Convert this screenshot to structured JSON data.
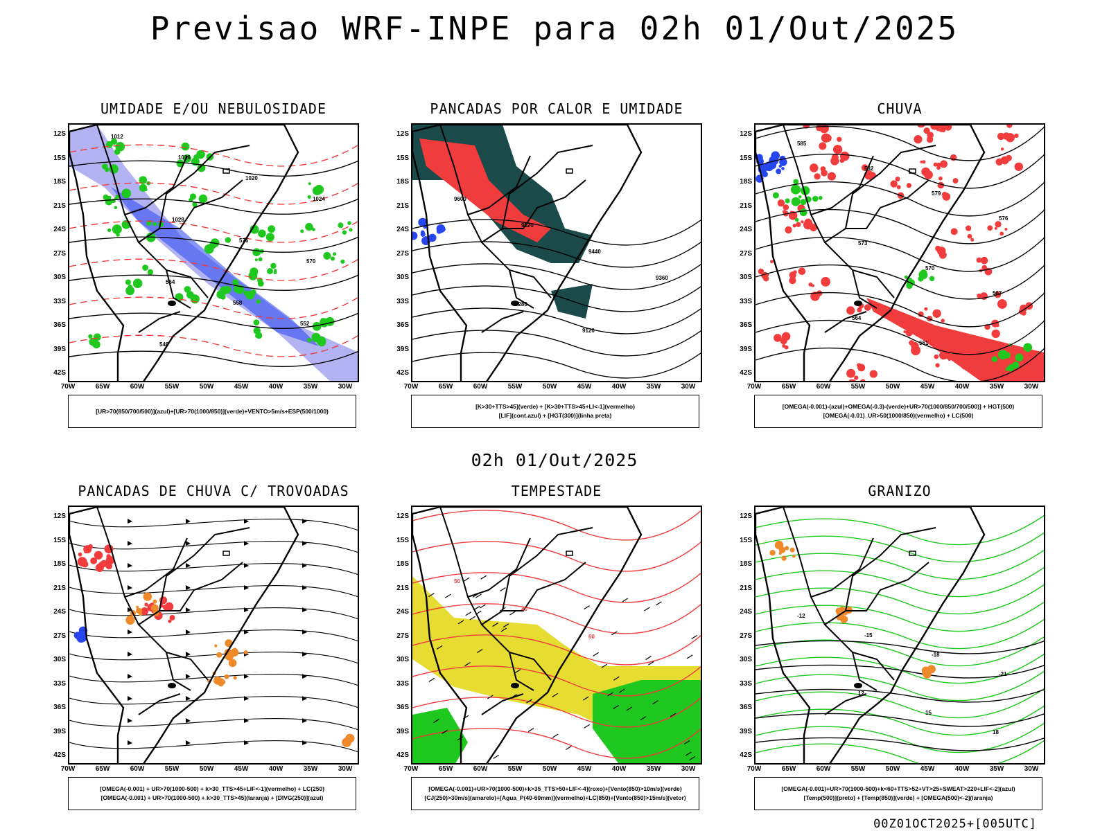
{
  "title": "Previsao WRF-INPE  para 02h 01/Out/2025",
  "mid_date": "02h 01/Out/2025",
  "footer": "00Z01OCT2025+[005UTC]",
  "axes": {
    "lat_labels": [
      "12S",
      "15S",
      "18S",
      "21S",
      "24S",
      "27S",
      "30S",
      "33S",
      "36S",
      "39S",
      "42S"
    ],
    "lon_labels": [
      "70W",
      "65W",
      "60W",
      "55W",
      "50W",
      "45W",
      "40W",
      "35W",
      "30W"
    ]
  },
  "colors": {
    "red": "#f03c3c",
    "green": "#1ec81e",
    "blue": "#2846f0",
    "lavender": "#a0a0f0",
    "orange": "#ef8a2b",
    "yellow": "#e6dc32",
    "darkteal": "#1a4a4a",
    "purple": "#8c28c8"
  },
  "panels": [
    {
      "title": "UMIDADE E/OU NEBULOSIDADE",
      "legend": [
        "[UR>70(850/700/500)](azul)+[UR>70(1000/850)](verde)+VENTO>5m/s+ESP(500/1000)"
      ],
      "contour_labels": [
        "1012",
        "1016",
        "1020",
        "1024",
        "1028",
        "576",
        "570",
        "564",
        "558",
        "552",
        "546"
      ]
    },
    {
      "title": "PANCADAS POR CALOR E UMIDADE",
      "legend": [
        "[K>30+TTS>45](verde) + [K>30+TTS>45+LI<-1](vermelho)",
        "[LIF](cont.azul) + [HGT(300)](linha preta)"
      ],
      "contour_labels": [
        "9600",
        "9520",
        "9440",
        "9360",
        "9280",
        "9120"
      ]
    },
    {
      "title": "CHUVA",
      "legend": [
        "[OMEGA(-0.001)-(azul)+OMEGA(-0.3)-(verde)+UR>70(1000/850/700/500)] + HGT(500)",
        "[OMEGA(-0.01)_UR>50(1000/850)(vermelho) + LC(500)"
      ],
      "contour_labels": [
        "585",
        "582",
        "579",
        "576",
        "573",
        "570",
        "567",
        "564",
        "561"
      ]
    },
    {
      "title": "PANCADAS DE CHUVA C/ TROVOADAS",
      "legend": [
        "[OMEGA(-0.001) + UR>70(1000-500) + k>30_TTS>45+LIF<-1](vermelho) + LC(250)",
        "[OMEGA(-0.001) + UR>70(1000-500) + k>30_TTS>45](laranja) + [DIVG(250)](azul)"
      ],
      "contour_labels": []
    },
    {
      "title": "TEMPESTADE",
      "legend": [
        "[OMEGA(-0.001)+UR>70(1000-500)+k>35_TTS>50+LIF<-4](roxo)+[Vento(850)>10m/s](verde)",
        "[CJ(250)>30m/s](amarelo)+[Agua_P(40-60mm)](vermelho)+LC(850)+[Vento(850)>15m/s](vetor)"
      ],
      "contour_labels": [
        "50",
        "40",
        "60"
      ]
    },
    {
      "title": "GRANIZO",
      "legend": [
        "[OMEGA(-0.001)+UR>70(1000-500)+k<60+TTS>52+VT>25+SWEAT>220+LIF<-2](azul)",
        "[Temp(500)](preto) + [Temp(850)](verde) + [OMEGA(500)<-2](laranja)"
      ],
      "contour_labels": [
        "-12",
        "-15",
        "-18",
        "-21",
        "12",
        "15",
        "18"
      ]
    }
  ]
}
